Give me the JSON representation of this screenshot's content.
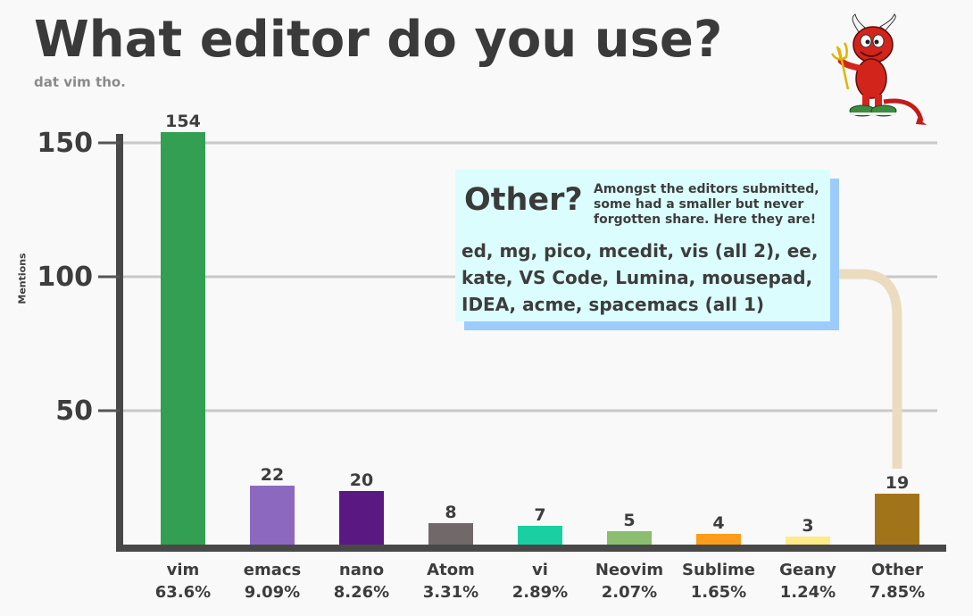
{
  "chart_data": {
    "type": "bar",
    "title": "What editor do you use?",
    "subtitle": "dat vim tho.",
    "ylabel": "Mentions",
    "ylim": [
      0,
      154
    ],
    "yticks": [
      50,
      100,
      150
    ],
    "grid": true,
    "categories": [
      "vim",
      "emacs",
      "nano",
      "Atom",
      "vi",
      "Neovim",
      "Sublime",
      "Geany",
      "Other"
    ],
    "percentages": [
      "63.6%",
      "9.09%",
      "8.26%",
      "3.31%",
      "2.89%",
      "2.07%",
      "1.65%",
      "1.24%",
      "7.85%"
    ],
    "values": [
      154,
      22,
      20,
      8,
      7,
      5,
      4,
      3,
      19
    ],
    "colors": [
      "#339f52",
      "#8c69bf",
      "#5a1883",
      "#706869",
      "#1acfa1",
      "#8bbe6e",
      "#fa9d1c",
      "#fdeb8a",
      "#a27419"
    ]
  },
  "callout": {
    "title": "Other?",
    "description": "Amongst the editors submitted, some had a smaller but never forgotten share. Here they are!",
    "body": "ed, mg, pico, mcedit, vis (all 2), ee, kate, VS Code, Lumina, mousepad, IDEA, acme, spacemacs (all 1)"
  },
  "mascot": {
    "icon": "bsd-daemon-icon"
  }
}
